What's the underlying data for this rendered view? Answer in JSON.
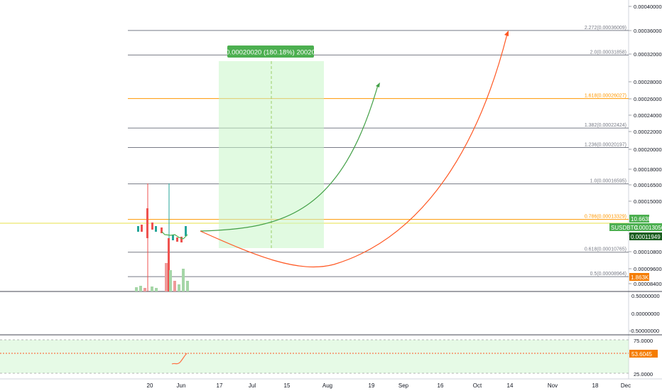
{
  "chart_data": {
    "type": "line",
    "symbol": "SUSDBTC",
    "price_axis": {
      "labels": [
        "0.00040000",
        "0.00036000",
        "0.00032000",
        "0.00028000",
        "0.00026000",
        "0.00024000",
        "0.00022000",
        "0.00020000",
        "0.00018000",
        "0.00016500",
        "0.00015000",
        "0.00012000",
        "0.00010800",
        "0.00009600",
        "0.00008400"
      ]
    },
    "fib_levels": [
      {
        "label": "2.272(0.00036009)",
        "value": 0.00036009,
        "color": "#787b86"
      },
      {
        "label": "2.0(0.00031858)",
        "value": 0.00031858,
        "color": "#787b86"
      },
      {
        "label": "1.618(0.00026027)",
        "value": 0.00026027,
        "color": "#ff9800"
      },
      {
        "label": "1.382(0.00022424)",
        "value": 0.00022424,
        "color": "#787b86"
      },
      {
        "label": "1.236(0.00020197)",
        "value": 0.00020197,
        "color": "#787b86"
      },
      {
        "label": "1.0(0.00016595)",
        "value": 0.00016595,
        "color": "#787b86"
      },
      {
        "label": "0.786(0.00013329)",
        "value": 0.00013329,
        "color": "#ff9800"
      },
      {
        "label": "0.618(0.00010765)",
        "value": 0.00010765,
        "color": "#787b86"
      },
      {
        "label": "0.5(0.00008964)",
        "value": 8.964e-05,
        "color": "#787b86"
      }
    ],
    "badges": [
      {
        "label": "10.663K",
        "color": "#4caf50"
      },
      {
        "label": "SUSDBTC",
        "value": "0.00013056",
        "color": "#4caf50"
      },
      {
        "label": "0.00011949",
        "color": "#1b5e20"
      },
      {
        "label": "1.863K",
        "color": "#f57c00"
      }
    ],
    "measure_label": "0.00020020 (180.18%) 20020",
    "osc_axis": {
      "labels": [
        "0.50000000",
        "0.00000000",
        "-0.50000000"
      ]
    },
    "rsi_axis": {
      "labels": [
        "75.0000",
        "25.0000"
      ],
      "value_label": "53.6045"
    },
    "x_labels": [
      "20",
      "Jun",
      "17",
      "Jul",
      "15",
      "Aug",
      "19",
      "Sep",
      "16",
      "Oct",
      "14",
      "Nov",
      "18",
      "Dec"
    ],
    "colors": {
      "green_projection": "#43a047",
      "red_projection": "#ff5722",
      "up": "#26a69a",
      "down": "#ef5350",
      "grid": "#b2b5be"
    }
  }
}
